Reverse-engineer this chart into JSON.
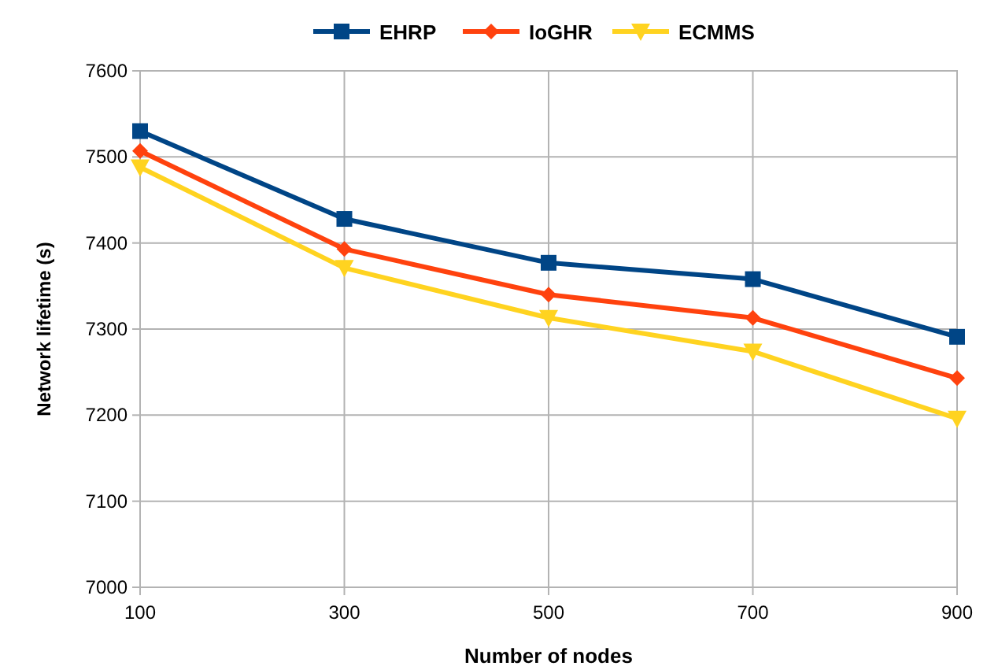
{
  "chart_data": {
    "type": "line",
    "xlabel": "Number of nodes",
    "ylabel": "Network lifetime (s)",
    "x": [
      100,
      300,
      500,
      700,
      900
    ],
    "series": [
      {
        "name": "EHRP",
        "color": "#004586",
        "marker": "square",
        "values": [
          7530,
          7428,
          7377,
          7358,
          7291
        ]
      },
      {
        "name": "IoGHR",
        "color": "#ff420e",
        "marker": "diamond",
        "values": [
          7507,
          7393,
          7340,
          7313,
          7243
        ]
      },
      {
        "name": "ECMMS",
        "color": "#ffd320",
        "marker": "triangle",
        "values": [
          7488,
          7371,
          7313,
          7274,
          7196
        ]
      }
    ],
    "xlim": [
      100,
      900
    ],
    "xticks": [
      100,
      300,
      500,
      700,
      900
    ],
    "ylim": [
      7000,
      7600
    ],
    "yticks": [
      7000,
      7100,
      7200,
      7300,
      7400,
      7500,
      7600
    ],
    "grid": true,
    "legend": "top",
    "line_style": "solid"
  }
}
